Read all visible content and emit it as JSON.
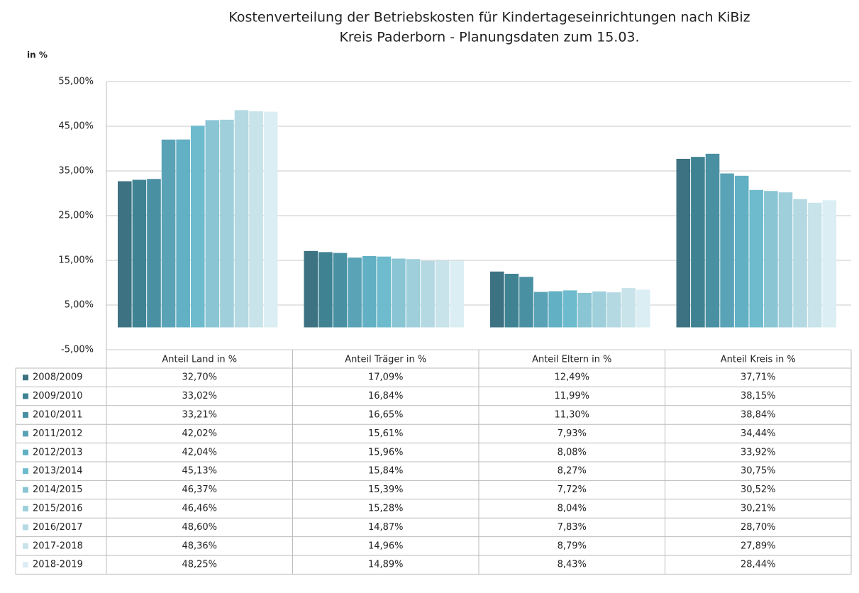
{
  "chart_data": {
    "type": "bar",
    "title": "Kostenverteilung der Betriebskosten für Kindertageseinrichtungen nach KiBiz",
    "subtitle": "Kreis Paderborn - Planungsdaten zum 15.03.",
    "y_axis_label": "in %",
    "categories": [
      "Anteil Land in %",
      "Anteil Träger in %",
      "Anteil Eltern in %",
      "Anteil Kreis in %"
    ],
    "ylim": [
      -5,
      55
    ],
    "yticks": [
      {
        "value": -5,
        "label": "-5,00%"
      },
      {
        "value": 5,
        "label": "5,00%"
      },
      {
        "value": 15,
        "label": "15,00%"
      },
      {
        "value": 25,
        "label": "25,00%"
      },
      {
        "value": 35,
        "label": "35,00%"
      },
      {
        "value": 45,
        "label": "45,00%"
      },
      {
        "value": 55,
        "label": "55,00%"
      }
    ],
    "grid": true,
    "series": [
      {
        "name": "2008/2009",
        "color": "#3d7282",
        "values": [
          32.7,
          17.09,
          12.49,
          37.71
        ],
        "value_labels": [
          "32,70%",
          "17,09%",
          "12,49%",
          "37,71%"
        ]
      },
      {
        "name": "2009/2010",
        "color": "#3f8393",
        "values": [
          33.02,
          16.84,
          11.99,
          38.15
        ],
        "value_labels": [
          "33,02%",
          "16,84%",
          "11,99%",
          "38,15%"
        ]
      },
      {
        "name": "2010/2011",
        "color": "#4a90a3",
        "values": [
          33.21,
          16.65,
          11.3,
          38.84
        ],
        "value_labels": [
          "33,21%",
          "16,65%",
          "11,30%",
          "38,84%"
        ]
      },
      {
        "name": "2011/2012",
        "color": "#5aa3b6",
        "values": [
          42.02,
          15.61,
          7.93,
          34.44
        ],
        "value_labels": [
          "42,02%",
          "15,61%",
          "7,93%",
          "34,44%"
        ]
      },
      {
        "name": "2012/2013",
        "color": "#62b0c4",
        "values": [
          42.04,
          15.96,
          8.08,
          33.92
        ],
        "value_labels": [
          "42,04%",
          "15,96%",
          "8,08%",
          "33,92%"
        ]
      },
      {
        "name": "2013/2014",
        "color": "#6dbbcd",
        "values": [
          45.13,
          15.84,
          8.27,
          30.75
        ],
        "value_labels": [
          "45,13%",
          "15,84%",
          "8,27%",
          "30,75%"
        ]
      },
      {
        "name": "2014/2015",
        "color": "#8ac5d4",
        "values": [
          46.37,
          15.39,
          7.72,
          30.52
        ],
        "value_labels": [
          "46,37%",
          "15,39%",
          "7,72%",
          "30,52%"
        ]
      },
      {
        "name": "2015/2016",
        "color": "#9fcfdb",
        "values": [
          46.46,
          15.28,
          8.04,
          30.21
        ],
        "value_labels": [
          "46,46%",
          "15,28%",
          "8,04%",
          "30,21%"
        ]
      },
      {
        "name": "2016/2017",
        "color": "#b4d9e3",
        "values": [
          48.6,
          14.87,
          7.83,
          28.7
        ],
        "value_labels": [
          "48,60%",
          "14,87%",
          "7,83%",
          "28,70%"
        ]
      },
      {
        "name": "2017-2018",
        "color": "#c8e3ea",
        "values": [
          48.36,
          14.96,
          8.79,
          27.89
        ],
        "value_labels": [
          "48,36%",
          "14,96%",
          "8,79%",
          "27,89%"
        ]
      },
      {
        "name": "2018-2019",
        "color": "#dbeef3",
        "values": [
          48.25,
          14.89,
          8.43,
          28.44
        ],
        "value_labels": [
          "48,25%",
          "14,89%",
          "8,43%",
          "28,44%"
        ]
      }
    ]
  }
}
